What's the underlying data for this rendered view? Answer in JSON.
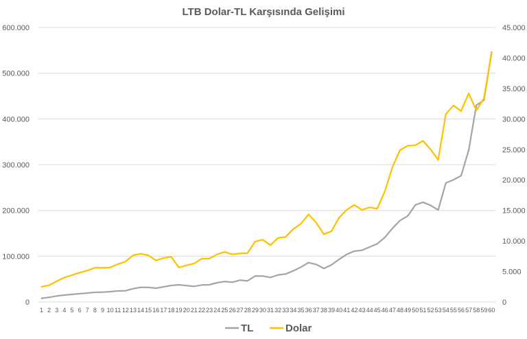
{
  "chart_data": {
    "type": "line",
    "title": "LTB Dolar-TL Karşısında Gelişimi",
    "x": [
      "1",
      "2",
      "3",
      "4",
      "5",
      "6",
      "7",
      "8",
      "9",
      "10",
      "11",
      "12",
      "13",
      "14",
      "15",
      "16",
      "17",
      "18",
      "19",
      "20",
      "21",
      "22",
      "23",
      "24",
      "25",
      "26",
      "27",
      "28",
      "29",
      "30",
      "31",
      "32",
      "33",
      "34",
      "35",
      "36",
      "37",
      "38",
      "39",
      "40",
      "41",
      "42",
      "43",
      "44",
      "45",
      "46",
      "47",
      "48",
      "49",
      "50",
      "51",
      "52",
      "53",
      "54",
      "55",
      "56",
      "57",
      "58",
      "59",
      "60"
    ],
    "y_left": {
      "min": 0,
      "max": 600000,
      "ticks": [
        0,
        100000,
        200000,
        300000,
        400000,
        500000,
        600000
      ],
      "tick_labels": [
        "0",
        "100.000",
        "200.000",
        "300.000",
        "400.000",
        "500.000",
        "600.000"
      ]
    },
    "y_right": {
      "min": 0,
      "max": 45000,
      "ticks": [
        0,
        5000,
        10000,
        15000,
        20000,
        25000,
        30000,
        35000,
        40000,
        45000
      ],
      "tick_labels": [
        "0",
        "5.000",
        "10.000",
        "15.000",
        "20.000",
        "25.000",
        "30.000",
        "35.000",
        "40.000",
        "45.000"
      ]
    },
    "grid": true,
    "legend": "bottom",
    "series": [
      {
        "name": "TL",
        "axis": "left",
        "color": "#a5a5a5",
        "values": [
          8000,
          10000,
          13000,
          15000,
          16500,
          18000,
          19500,
          21000,
          21500,
          22500,
          24000,
          24500,
          29000,
          32000,
          32000,
          30000,
          33000,
          36000,
          37500,
          35500,
          34000,
          37000,
          37500,
          42000,
          44500,
          43000,
          47500,
          46000,
          56500,
          56500,
          53500,
          59000,
          61000,
          68000,
          76000,
          86000,
          82000,
          73000,
          81000,
          93000,
          104000,
          111000,
          113000,
          120000,
          127000,
          141000,
          161000,
          178000,
          188000,
          212000,
          218000,
          211000,
          201000,
          260000,
          267000,
          276000,
          332000,
          430000,
          441000,
          546000
        ]
      },
      {
        "name": "Dolar",
        "axis": "right",
        "color": "#ffc000",
        "values": [
          2500,
          2750,
          3400,
          4000,
          4400,
          4800,
          5150,
          5600,
          5600,
          5650,
          6200,
          6600,
          7650,
          7900,
          7650,
          6800,
          7200,
          7400,
          5650,
          6000,
          6300,
          7100,
          7100,
          7800,
          8200,
          7800,
          7950,
          8000,
          9900,
          10200,
          9300,
          10500,
          10650,
          11950,
          12800,
          14350,
          13000,
          11100,
          11600,
          13800,
          15100,
          15900,
          15100,
          15500,
          15300,
          18100,
          22100,
          24900,
          25600,
          25700,
          26400,
          25000,
          23300,
          30800,
          32200,
          31300,
          34200,
          31400,
          33400,
          40800
        ]
      }
    ]
  }
}
